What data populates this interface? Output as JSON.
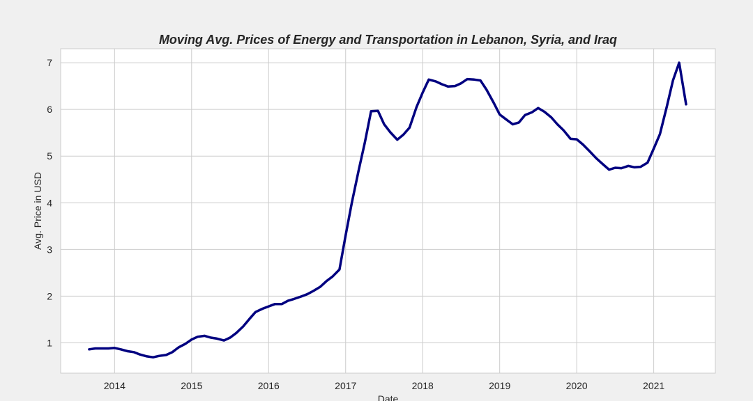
{
  "chart_data": {
    "type": "line",
    "title": "Moving Avg. Prices of Energy and Transportation in Lebanon, Syria, and Iraq",
    "xlabel": "Date",
    "ylabel": "Avg. Price in USD",
    "xlim": [
      2013.3,
      2021.8
    ],
    "ylim": [
      0.35,
      7.3
    ],
    "x_ticks": [
      2014,
      2015,
      2016,
      2017,
      2018,
      2019,
      2020,
      2021
    ],
    "x_tick_labels": [
      "2014",
      "2015",
      "2016",
      "2017",
      "2018",
      "2019",
      "2020",
      "2021"
    ],
    "y_ticks": [
      1,
      2,
      3,
      4,
      5,
      6,
      7
    ],
    "y_tick_labels": [
      "1",
      "2",
      "3",
      "4",
      "5",
      "6",
      "7"
    ],
    "grid": true,
    "series": [
      {
        "color": "#000080",
        "x": [
          2013.67,
          2013.75,
          2013.83,
          2013.92,
          2014.0,
          2014.08,
          2014.17,
          2014.25,
          2014.33,
          2014.42,
          2014.5,
          2014.58,
          2014.67,
          2014.75,
          2014.83,
          2014.92,
          2015.0,
          2015.08,
          2015.17,
          2015.25,
          2015.33,
          2015.42,
          2015.5,
          2015.58,
          2015.67,
          2015.75,
          2015.83,
          2015.92,
          2016.0,
          2016.08,
          2016.17,
          2016.25,
          2016.33,
          2016.42,
          2016.5,
          2016.58,
          2016.67,
          2016.75,
          2016.83,
          2016.92,
          2017.0,
          2017.08,
          2017.17,
          2017.25,
          2017.33,
          2017.42,
          2017.5,
          2017.58,
          2017.67,
          2017.75,
          2017.83,
          2017.92,
          2018.0,
          2018.08,
          2018.17,
          2018.25,
          2018.33,
          2018.42,
          2018.5,
          2018.58,
          2018.67,
          2018.75,
          2018.83,
          2018.92,
          2019.0,
          2019.08,
          2019.17,
          2019.25,
          2019.33,
          2019.42,
          2019.5,
          2019.58,
          2019.67,
          2019.75,
          2019.83,
          2019.92,
          2020.0,
          2020.08,
          2020.17,
          2020.25,
          2020.33,
          2020.42,
          2020.5,
          2020.58,
          2020.67,
          2020.75,
          2020.83,
          2020.92,
          2021.0,
          2021.08,
          2021.17,
          2021.25,
          2021.33,
          2021.42
        ],
        "y": [
          0.86,
          0.88,
          0.88,
          0.88,
          0.89,
          0.86,
          0.82,
          0.8,
          0.75,
          0.71,
          0.69,
          0.72,
          0.74,
          0.8,
          0.9,
          0.98,
          1.07,
          1.13,
          1.15,
          1.11,
          1.09,
          1.05,
          1.11,
          1.21,
          1.35,
          1.51,
          1.66,
          1.73,
          1.78,
          1.83,
          1.83,
          1.9,
          1.94,
          1.99,
          2.04,
          2.11,
          2.2,
          2.32,
          2.42,
          2.57,
          3.3,
          4.0,
          4.7,
          5.3,
          5.96,
          5.97,
          5.68,
          5.51,
          5.35,
          5.46,
          5.61,
          6.05,
          6.36,
          6.64,
          6.6,
          6.54,
          6.49,
          6.5,
          6.56,
          6.65,
          6.64,
          6.62,
          6.42,
          6.15,
          5.89,
          5.79,
          5.68,
          5.72,
          5.88,
          5.94,
          6.03,
          5.95,
          5.83,
          5.68,
          5.55,
          5.37,
          5.36,
          5.25,
          5.1,
          4.96,
          4.84,
          4.71,
          4.75,
          4.74,
          4.79,
          4.76,
          4.77,
          4.86,
          5.16,
          5.47,
          6.06,
          6.62,
          7.0,
          6.11
        ]
      }
    ]
  }
}
